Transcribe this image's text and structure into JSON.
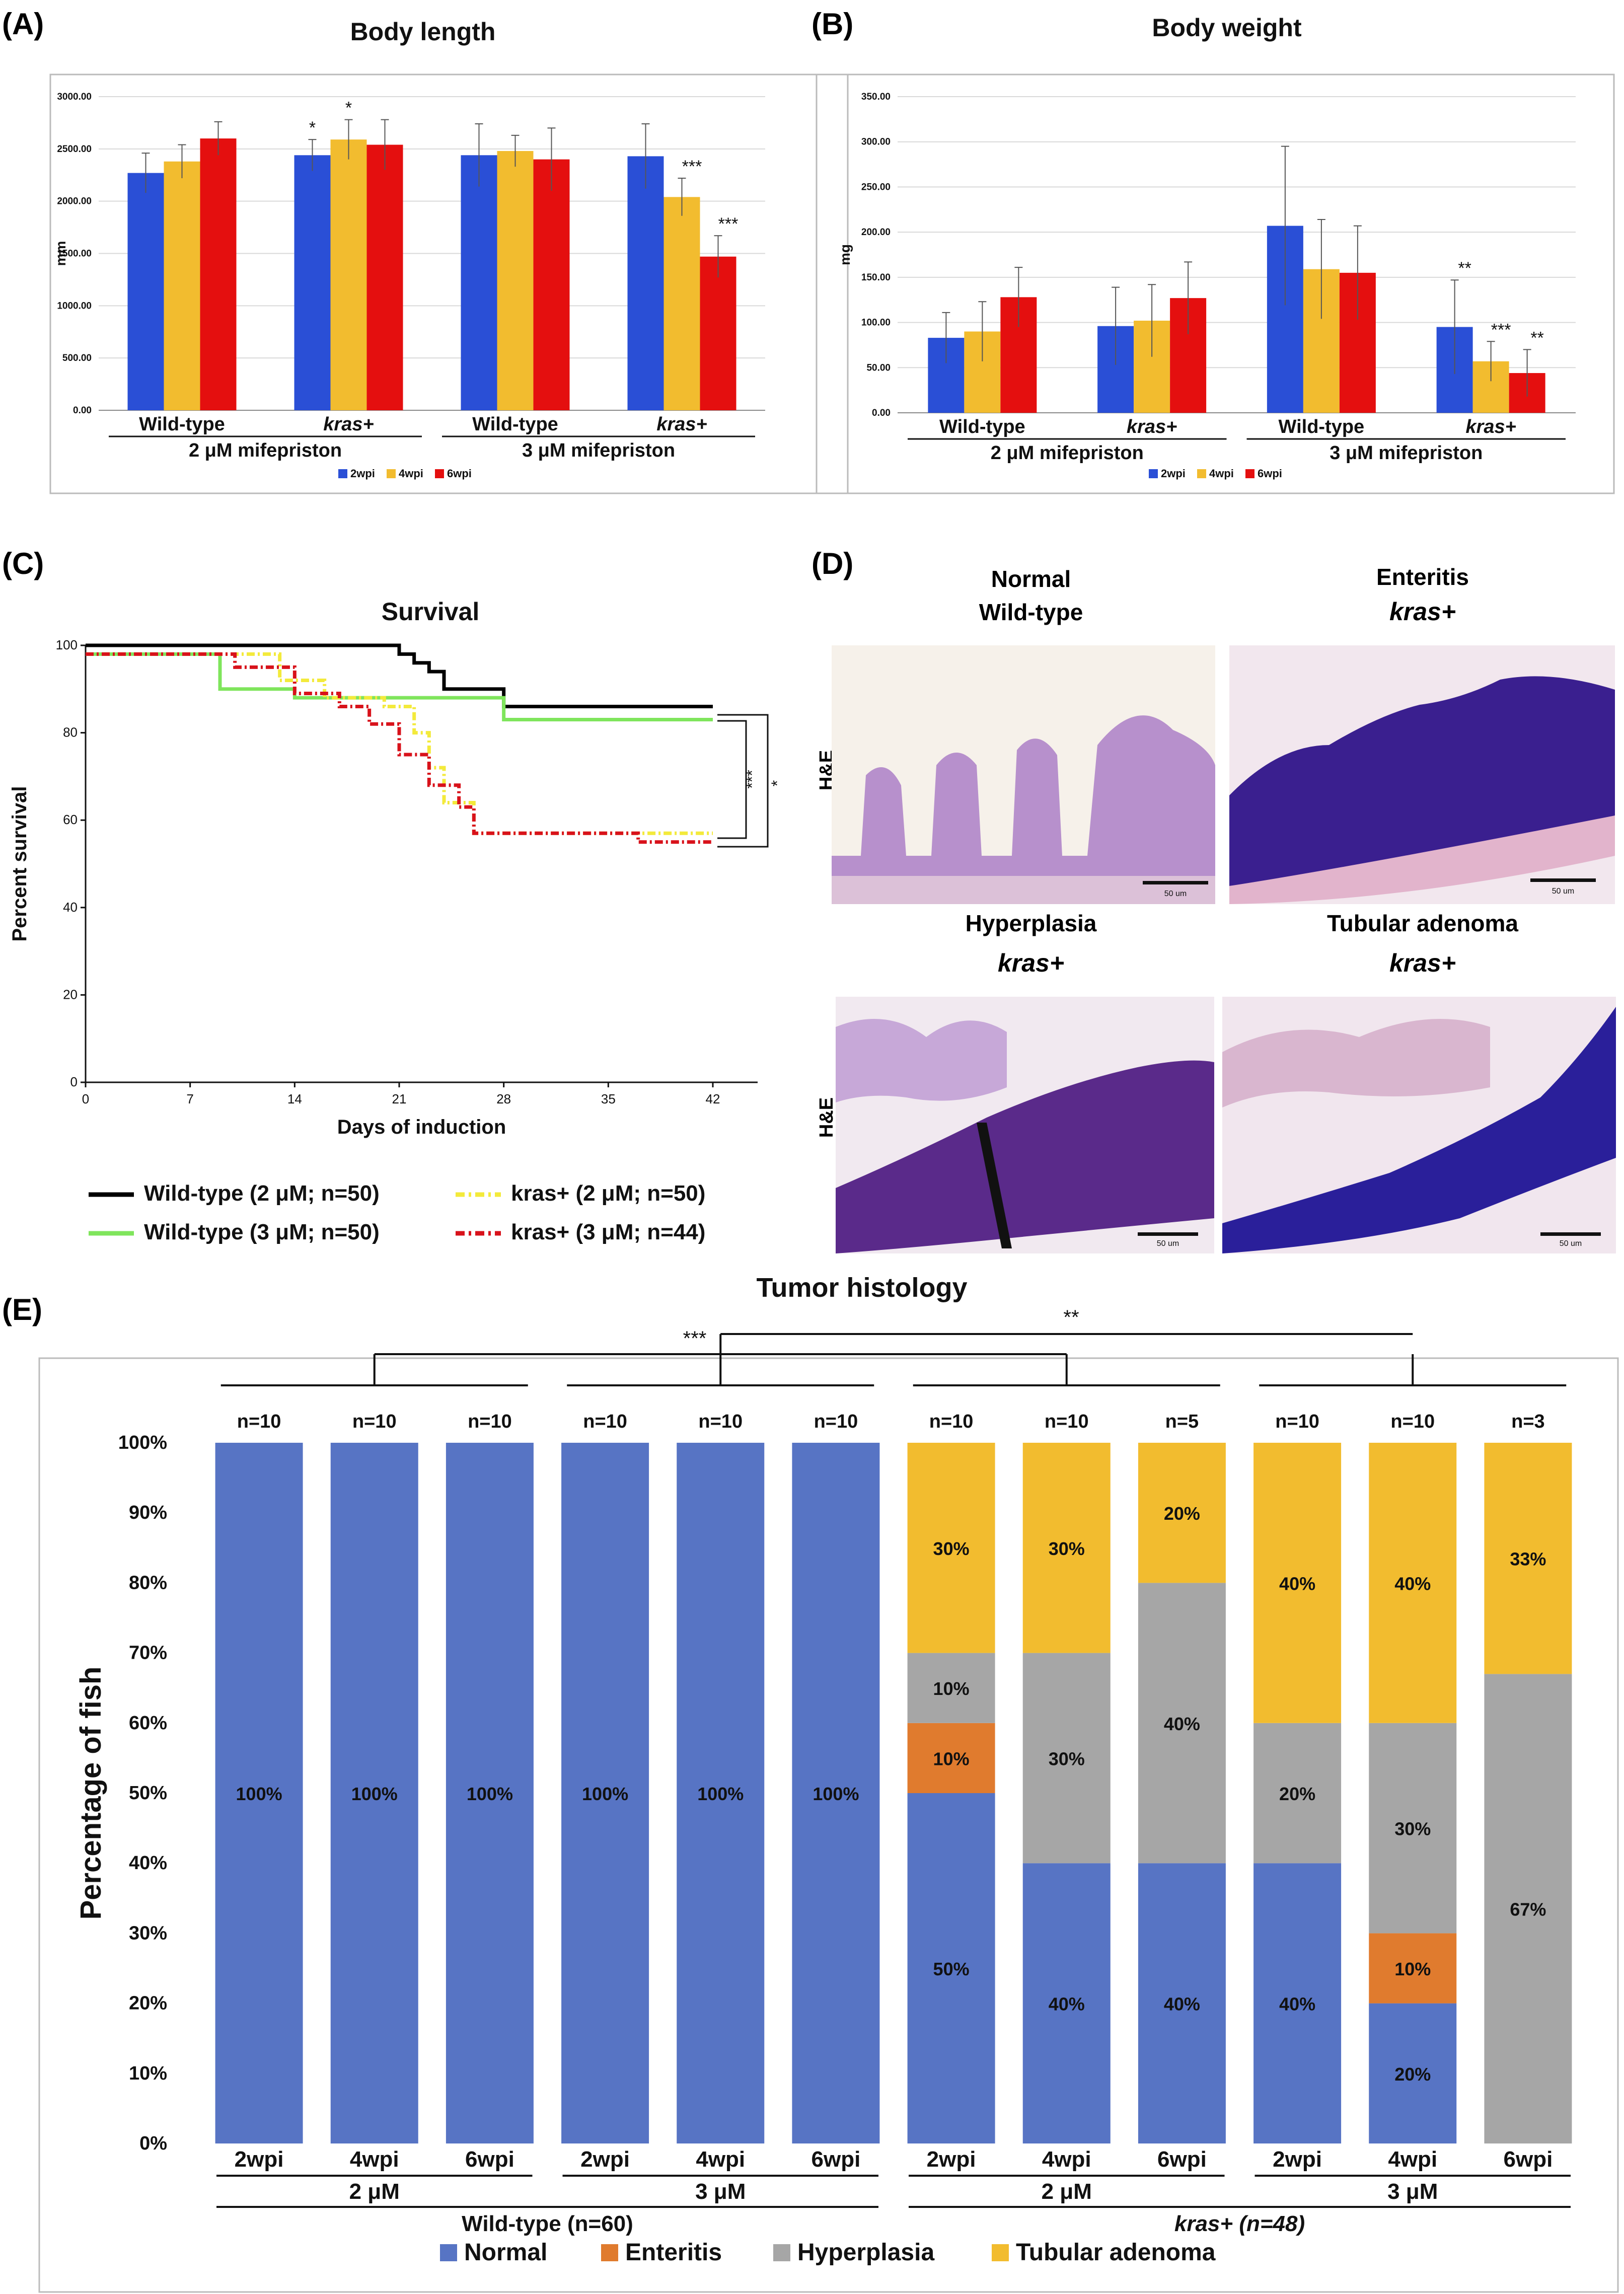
{
  "panel_labels": {
    "a": "(A)",
    "b": "(B)",
    "c": "(C)",
    "d": "(D)",
    "e": "(E)"
  },
  "colors": {
    "blue": "#2a4fd6",
    "yellow": "#f2bc2f",
    "red": "#e40f0f",
    "normal": "#5774c4",
    "enteritis": "#e07b2e",
    "hyperplasia": "#a6a6a6",
    "adenoma": "#f2bc2f",
    "wt2": "#000000",
    "wt3": "#7fe55c",
    "kr2": "#f3ea3b",
    "kr3": "#d8121b"
  },
  "chart_data": [
    {
      "type": "bar",
      "title": "Body length",
      "ylabel": "mm",
      "ylim": [
        0,
        3000
      ],
      "yticks": [
        "0.00",
        "500.00",
        "1000.00",
        "1500.00",
        "2000.00",
        "2500.00",
        "3000.00"
      ],
      "groups": [
        "Wild-type",
        "kras+",
        "Wild-type",
        "kras+"
      ],
      "conditions": [
        "2 μM mifepriston",
        "3 μM mifepriston"
      ],
      "series": [
        {
          "name": "2wpi",
          "values": [
            2270,
            2440,
            2440,
            2430
          ],
          "errors": [
            190,
            150,
            300,
            310
          ]
        },
        {
          "name": "4wpi",
          "values": [
            2380,
            2590,
            2480,
            2040
          ],
          "errors": [
            160,
            190,
            150,
            180
          ]
        },
        {
          "name": "6wpi",
          "values": [
            2600,
            2540,
            2400,
            1470
          ],
          "errors": [
            160,
            240,
            300,
            200
          ]
        }
      ],
      "annotations": [
        {
          "group": 1,
          "series": 0,
          "text": "*"
        },
        {
          "group": 1,
          "series": 1,
          "text": "*"
        },
        {
          "group": 3,
          "series": 1,
          "text": "***"
        },
        {
          "group": 3,
          "series": 2,
          "text": "***"
        }
      ]
    },
    {
      "type": "bar",
      "title": "Body weight",
      "ylabel": "mg",
      "ylim": [
        0,
        350
      ],
      "yticks": [
        "0.00",
        "50.00",
        "100.00",
        "150.00",
        "200.00",
        "250.00",
        "300.00",
        "350.00"
      ],
      "groups": [
        "Wild-type",
        "kras+",
        "Wild-type",
        "kras+"
      ],
      "conditions": [
        "2 μM mifepriston",
        "3 μM mifepriston"
      ],
      "series": [
        {
          "name": "2wpi",
          "values": [
            83,
            96,
            207,
            95
          ],
          "errors": [
            28,
            43,
            88,
            52
          ]
        },
        {
          "name": "4wpi",
          "values": [
            90,
            102,
            159,
            57
          ],
          "errors": [
            33,
            40,
            55,
            22
          ]
        },
        {
          "name": "6wpi",
          "values": [
            128,
            127,
            155,
            44
          ],
          "errors": [
            33,
            40,
            52,
            26
          ]
        }
      ],
      "annotations": [
        {
          "group": 3,
          "series": 0,
          "text": "**"
        },
        {
          "group": 3,
          "series": 1,
          "text": "***"
        },
        {
          "group": 3,
          "series": 2,
          "text": "**"
        }
      ]
    },
    {
      "type": "line",
      "title": "Survival",
      "xlabel": "Days of induction",
      "ylabel": "Percent survival",
      "xlim": [
        0,
        45
      ],
      "ylim": [
        0,
        100
      ],
      "xticks": [
        0,
        7,
        14,
        21,
        28,
        35,
        42
      ],
      "yticks": [
        0,
        20,
        40,
        60,
        80,
        100
      ],
      "series": [
        {
          "name": "Wild-type (2 μM; n=50)",
          "x": [
            0,
            20,
            21,
            22,
            23,
            24,
            26,
            28,
            42
          ],
          "y": [
            100,
            100,
            98,
            96,
            94,
            90,
            90,
            86,
            86
          ]
        },
        {
          "name": "Wild-type (3 μM; n=50)",
          "x": [
            0,
            3,
            9,
            14,
            17,
            26,
            28,
            42
          ],
          "y": [
            98,
            98,
            90,
            88,
            88,
            88,
            83,
            83
          ]
        },
        {
          "name": "kras+ (2 μM; n=50)",
          "x": [
            0,
            9,
            13,
            16,
            20,
            22,
            23,
            24,
            26,
            42
          ],
          "y": [
            98,
            98,
            92,
            88,
            86,
            80,
            72,
            64,
            57,
            57
          ]
        },
        {
          "name": "kras+ (3 μM; n=44)",
          "x": [
            0,
            10,
            14,
            17,
            19,
            21,
            23,
            25,
            26,
            37,
            42
          ],
          "y": [
            98,
            95,
            89,
            86,
            82,
            75,
            68,
            63,
            57,
            55,
            55
          ]
        }
      ],
      "annotations": [
        "***",
        "*"
      ]
    },
    {
      "type": "bar",
      "stacked": true,
      "title": "Tumor histology",
      "ylabel": "Percentage of fish",
      "ylim": [
        0,
        100
      ],
      "yticks": [
        "0%",
        "10%",
        "20%",
        "30%",
        "40%",
        "50%",
        "60%",
        "70%",
        "80%",
        "90%",
        "100%"
      ],
      "categories": [
        "2wpi",
        "4wpi",
        "6wpi",
        "2wpi",
        "4wpi",
        "6wpi",
        "2wpi",
        "4wpi",
        "6wpi",
        "2wpi",
        "4wpi",
        "6wpi"
      ],
      "n_labels": [
        "n=10",
        "n=10",
        "n=10",
        "n=10",
        "n=10",
        "n=10",
        "n=10",
        "n=10",
        "n=5",
        "n=10",
        "n=10",
        "n=3"
      ],
      "doses": [
        "2 μM",
        "3 μM",
        "2 μM",
        "3 μM"
      ],
      "groups": [
        "Wild-type (n=60)",
        "kras+ (n=48)"
      ],
      "significance": [
        "***",
        "**"
      ],
      "series": [
        {
          "name": "Normal",
          "values": [
            100,
            100,
            100,
            100,
            100,
            100,
            50,
            40,
            40,
            40,
            20,
            0
          ],
          "labels": [
            "100%",
            "100%",
            "100%",
            "100%",
            "100%",
            "100%",
            "50%",
            "40%",
            "40%",
            "40%",
            "20%",
            ""
          ]
        },
        {
          "name": "Enteritis",
          "values": [
            0,
            0,
            0,
            0,
            0,
            0,
            10,
            0,
            0,
            0,
            10,
            0
          ],
          "labels": [
            "",
            "",
            "",
            "",
            "",
            "",
            "10%",
            "",
            "",
            "",
            "10%",
            ""
          ]
        },
        {
          "name": "Hyperplasia",
          "values": [
            0,
            0,
            0,
            0,
            0,
            0,
            10,
            30,
            40,
            20,
            30,
            67
          ],
          "labels": [
            "",
            "",
            "",
            "",
            "",
            "",
            "10%",
            "30%",
            "40%",
            "20%",
            "30%",
            "67%"
          ]
        },
        {
          "name": "Tubular adenoma",
          "values": [
            0,
            0,
            0,
            0,
            0,
            0,
            30,
            30,
            20,
            40,
            40,
            33
          ],
          "labels": [
            "",
            "",
            "",
            "",
            "",
            "",
            "30%",
            "30%",
            "20%",
            "40%",
            "40%",
            "33%"
          ]
        }
      ]
    }
  ],
  "micrographs": {
    "titles": [
      "Normal",
      "Wild-type",
      "Enteritis",
      "kras+",
      "Hyperplasia",
      "kras+",
      "Tubular adenoma",
      "kras+"
    ],
    "stain": "H&E",
    "scale": "50 um"
  }
}
